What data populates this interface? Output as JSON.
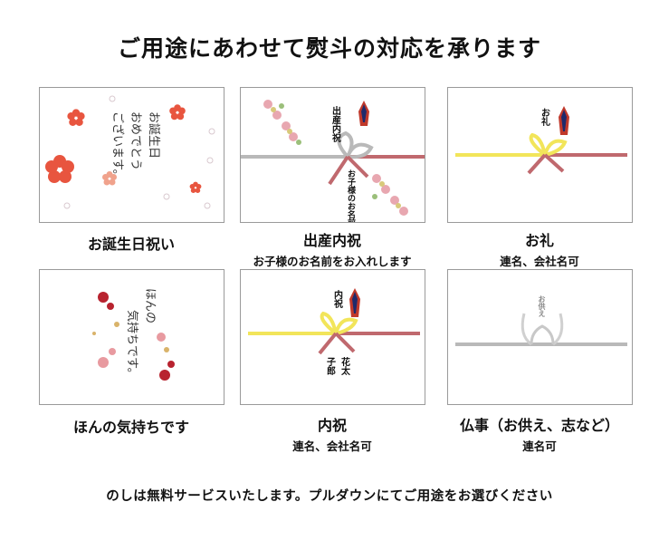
{
  "title": "ご用途にあわせて熨斗の対応を承ります",
  "cards": [
    {
      "caption": "お誕生日祝い",
      "sub": "",
      "art_text": [
        "お誕生日",
        "おめでとう",
        "ございます。"
      ]
    },
    {
      "caption": "出産内祝",
      "sub": "お子様のお名前をお入れします",
      "art_text": [
        "出産内祝",
        "お子様のお名前"
      ]
    },
    {
      "caption": "お礼",
      "sub": "連名、会社名可",
      "art_text": [
        "お礼"
      ]
    },
    {
      "caption": "ほんの気持ちです",
      "sub": "",
      "art_text": [
        "ほんの",
        "気持ちです。"
      ]
    },
    {
      "caption": "内祝",
      "sub": "連名、会社名可",
      "art_text": [
        "内祝",
        "花太",
        "子郎"
      ]
    },
    {
      "caption": "仏事（お供え、志など）",
      "sub": "連名可",
      "art_text": [
        "お供え"
      ]
    }
  ],
  "footer": "のしは無料サービスいたします。プルダウンにてご用途をお選びください",
  "colors": {
    "ribbon_red": "#c0696e",
    "ribbon_yellow": "#f2e55a",
    "ribbon_silver": "#b9b9b9",
    "flower_red": "#e8553f",
    "noshi_navy": "#1f2a6b"
  }
}
